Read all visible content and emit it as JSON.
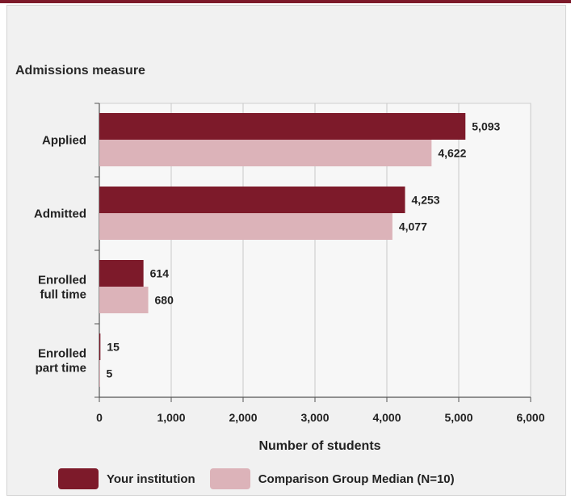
{
  "colors": {
    "primary": "#7d1a2a",
    "comparison": "#dcb3b9",
    "plot_bg": "#f7f7f7",
    "panel_bg": "#f1f1f1"
  },
  "chart_data": {
    "type": "bar",
    "orientation": "horizontal",
    "title": "Admissions measure",
    "categories": [
      {
        "lines": [
          "Applied"
        ]
      },
      {
        "lines": [
          "Admitted"
        ]
      },
      {
        "lines": [
          "Enrolled",
          "full time"
        ]
      },
      {
        "lines": [
          "Enrolled",
          "part time"
        ]
      }
    ],
    "series": [
      {
        "name": "Your institution",
        "color": "#7d1a2a",
        "values": [
          5093,
          4253,
          614,
          15
        ],
        "labels": [
          "5,093",
          "4,253",
          "614",
          "15"
        ]
      },
      {
        "name": "Comparison Group Median (N=10)",
        "color": "#dcb3b9",
        "values": [
          4622,
          4077,
          680,
          5
        ],
        "labels": [
          "4,622",
          "4,077",
          "680",
          "5"
        ]
      }
    ],
    "xlabel": "Number of students",
    "xlim": [
      0,
      6000
    ],
    "xticks": [
      0,
      1000,
      2000,
      3000,
      4000,
      5000,
      6000
    ],
    "xtick_labels": [
      "0",
      "1,000",
      "2,000",
      "3,000",
      "4,000",
      "5,000",
      "6,000"
    ],
    "grid": true,
    "legend_position": "bottom"
  }
}
